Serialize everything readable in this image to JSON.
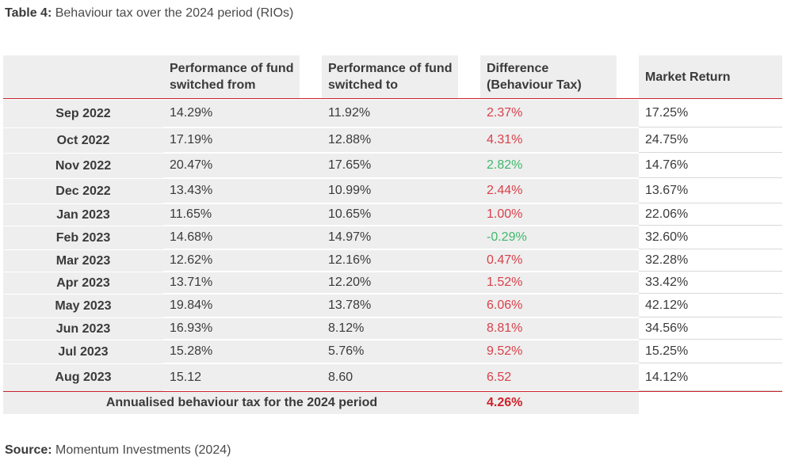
{
  "caption": {
    "label": "Table 4:",
    "text": "Behaviour tax over the 2024 period (RIOs)"
  },
  "table": {
    "headers": [
      "",
      "Performance of fund switched from",
      "Performance of fund switched to",
      "Difference (Behaviour Tax)",
      "Market Return"
    ],
    "rows": [
      {
        "month": "Sep 2022",
        "from": "14.29%",
        "to": "11.92%",
        "diff": "2.37%",
        "diff_color": "red",
        "market": "17.25%"
      },
      {
        "month": "Oct 2022",
        "from": "17.19%",
        "to": "12.88%",
        "diff": "4.31%",
        "diff_color": "red",
        "market": "24.75%"
      },
      {
        "month": "Nov 2022",
        "from": "20.47%",
        "to": "17.65%",
        "diff": "2.82%",
        "diff_color": "green",
        "market": "14.76%"
      },
      {
        "month": "Dec 2022",
        "from": "13.43%",
        "to": "10.99%",
        "diff": "2.44%",
        "diff_color": "red",
        "market": "13.67%"
      },
      {
        "month": "Jan 2023",
        "from": "11.65%",
        "to": "10.65%",
        "diff": "1.00%",
        "diff_color": "red",
        "market": "22.06%"
      },
      {
        "month": "Feb 2023",
        "from": "14.68%",
        "to": "14.97%",
        "diff": "-0.29%",
        "diff_color": "green",
        "market": "32.60%"
      },
      {
        "month": "Mar 2023",
        "from": "12.62%",
        "to": "12.16%",
        "diff": "0.47%",
        "diff_color": "red",
        "market": "32.28%"
      },
      {
        "month": "Apr 2023",
        "from": "13.71%",
        "to": "12.20%",
        "diff": "1.52%",
        "diff_color": "red",
        "market": "33.42%"
      },
      {
        "month": "May 2023",
        "from": "19.84%",
        "to": "13.78%",
        "diff": "6.06%",
        "diff_color": "red",
        "market": "42.12%"
      },
      {
        "month": "Jun 2023",
        "from": "16.93%",
        "to": "8.12%",
        "diff": "8.81%",
        "diff_color": "red",
        "market": "34.56%"
      },
      {
        "month": "Jul 2023",
        "from": "15.28%",
        "to": "5.76%",
        "diff": "9.52%",
        "diff_color": "red",
        "market": "15.25%"
      },
      {
        "month": "Aug 2023",
        "from": "15.12",
        "to": "8.60",
        "diff": "6.52",
        "diff_color": "red",
        "market": "14.12%"
      }
    ],
    "footer": {
      "label": "Annualised behaviour tax for the 2024 period",
      "value": "4.26%"
    }
  },
  "source": {
    "label": "Source:",
    "text": "Momentum Investments (2024)"
  },
  "colors": {
    "accent": "#c8232c",
    "negative_text": "#d9404a",
    "positive_text": "#3fb86c",
    "shade": "#eeeeee"
  }
}
